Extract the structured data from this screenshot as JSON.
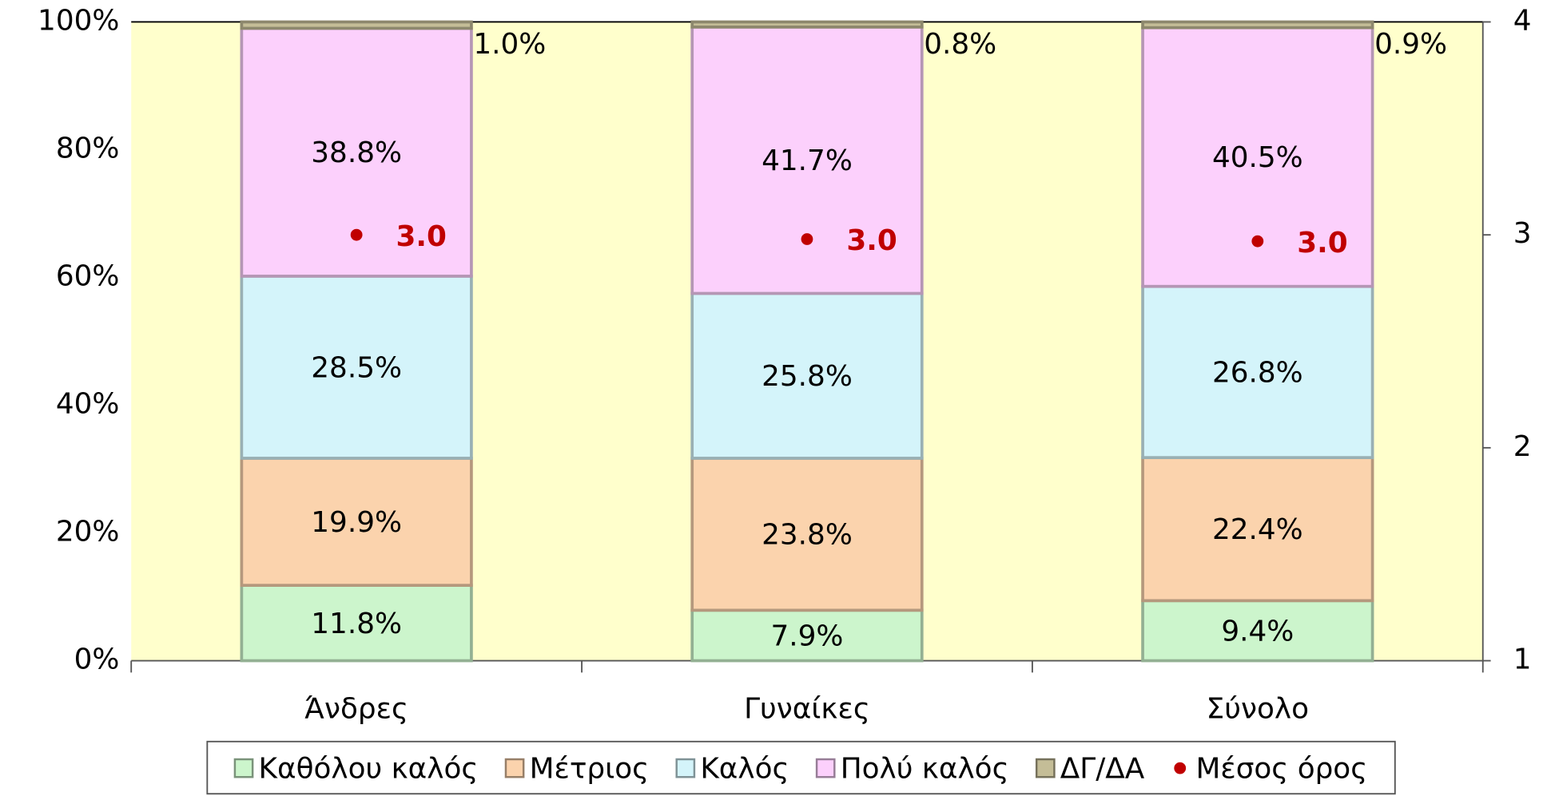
{
  "chart_data": {
    "type": "bar",
    "stacked": true,
    "categories": [
      "Άνδρες",
      "Γυναίκες",
      "Σύνολο"
    ],
    "series": [
      {
        "name": "Καθόλου καλός",
        "color": "#ccf5cc",
        "values": [
          11.8,
          7.9,
          9.4
        ],
        "value_labels": [
          "11.8%",
          "7.9%",
          "9.4%"
        ]
      },
      {
        "name": "Μέτριος",
        "color": "#fbd3ad",
        "values": [
          19.9,
          23.8,
          22.4
        ],
        "value_labels": [
          "19.9%",
          "23.8%",
          "22.4%"
        ]
      },
      {
        "name": "Καλός",
        "color": "#d4f4fa",
        "values": [
          28.5,
          25.8,
          26.8
        ],
        "value_labels": [
          "28.5%",
          "25.8%",
          "26.8%"
        ]
      },
      {
        "name": "Πολύ καλός",
        "color": "#fcd0fc",
        "values": [
          38.8,
          41.7,
          40.5
        ],
        "value_labels": [
          "38.8%",
          "41.7%",
          "40.5%"
        ]
      },
      {
        "name": "ΔΓ/ΔΑ",
        "color": "#c4bd97",
        "values": [
          1.0,
          0.8,
          0.9
        ],
        "value_labels": [
          "1.0%",
          "0.8%",
          "0.9%"
        ]
      },
      {
        "name": "Μέσος όρος",
        "type": "scatter",
        "axis": "y2",
        "color": "#c00000",
        "values": [
          3.0,
          2.98,
          2.97
        ],
        "value_labels": [
          "3.0",
          "3.0",
          "3.0"
        ]
      }
    ],
    "ylim": [
      0,
      100
    ],
    "yticks": [
      {
        "value": 0,
        "label": "0%"
      },
      {
        "value": 20,
        "label": "20%"
      },
      {
        "value": 40,
        "label": "40%"
      },
      {
        "value": 60,
        "label": "60%"
      },
      {
        "value": 80,
        "label": "80%"
      },
      {
        "value": 100,
        "label": "100%"
      }
    ],
    "y2lim": [
      1,
      4
    ],
    "y2ticks": [
      1,
      2,
      3,
      4
    ],
    "plot_background": "#ffffcc",
    "legend": "bottom"
  }
}
